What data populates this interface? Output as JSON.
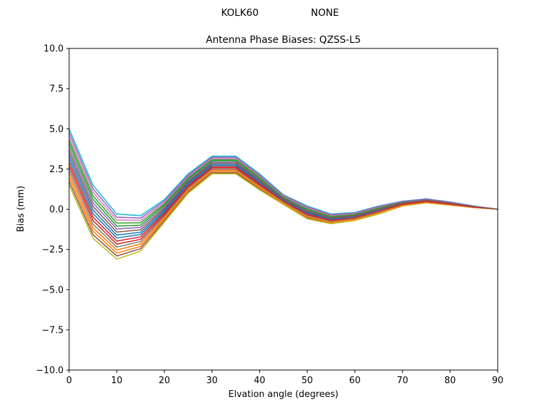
{
  "figure": {
    "suptitle_left": "KOLK60",
    "suptitle_right": "NONE"
  },
  "chart_data": {
    "type": "line",
    "suptitle": "KOLK60        NONE",
    "title": "Antenna Phase Biases: QZSS-L5",
    "xlabel": "Elvation angle (degrees)",
    "ylabel": "Bias (mm)",
    "xlim": [
      0,
      90
    ],
    "ylim": [
      -10.0,
      10.0
    ],
    "xticks": [
      0,
      10,
      20,
      30,
      40,
      50,
      60,
      70,
      80,
      90
    ],
    "xtick_labels": [
      "0",
      "10",
      "20",
      "30",
      "40",
      "50",
      "60",
      "70",
      "80",
      "90"
    ],
    "yticks": [
      -10.0,
      -7.5,
      -5.0,
      -2.5,
      0.0,
      2.5,
      5.0,
      7.5,
      10.0
    ],
    "ytick_labels": [
      "−10.0",
      "−7.5",
      "−5.0",
      "−2.5",
      "0.0",
      "2.5",
      "5.0",
      "7.5",
      "10.0"
    ],
    "grid": false,
    "legend": "none",
    "line_width": 1.6,
    "colors": [
      "#1f77b4",
      "#ff7f0e",
      "#2ca02c",
      "#d62728",
      "#9467bd",
      "#8c564b",
      "#e377c2",
      "#7f7f7f",
      "#bcbd22",
      "#17becf"
    ],
    "x": [
      0,
      5,
      10,
      15,
      20,
      25,
      30,
      35,
      40,
      45,
      50,
      55,
      60,
      65,
      70,
      75,
      80,
      85,
      90
    ],
    "series": [
      {
        "name": "s01",
        "values": [
          3.37,
          -0.04,
          -1.61,
          -1.43,
          -0.05,
          1.64,
          2.79,
          2.79,
          1.73,
          0.62,
          -0.17,
          -0.58,
          -0.43,
          -0.03,
          0.36,
          0.53,
          0.36,
          0.15,
          0.0
        ]
      },
      {
        "name": "s02",
        "values": [
          2.2,
          -1.14,
          -2.54,
          -2.16,
          -0.52,
          1.24,
          2.42,
          2.42,
          1.4,
          0.42,
          -0.44,
          -0.78,
          -0.6,
          -0.2,
          0.26,
          0.45,
          0.29,
          0.12,
          0.0
        ]
      },
      {
        "name": "s03",
        "values": [
          4.3,
          0.84,
          -0.86,
          -0.84,
          0.32,
          1.96,
          3.08,
          3.08,
          2.0,
          0.78,
          0.04,
          -0.42,
          -0.3,
          0.1,
          0.44,
          0.6,
          0.41,
          0.18,
          0.0
        ]
      },
      {
        "name": "s04",
        "values": [
          2.9,
          -0.48,
          -1.98,
          -1.72,
          -0.24,
          1.48,
          2.64,
          2.64,
          1.6,
          0.54,
          -0.28,
          -0.66,
          -0.5,
          -0.1,
          0.32,
          0.5,
          0.33,
          0.14,
          0.0
        ]
      },
      {
        "name": "s05",
        "values": [
          3.83,
          0.4,
          -1.23,
          -1.13,
          0.13,
          1.8,
          2.93,
          2.93,
          1.87,
          0.7,
          -0.07,
          -0.5,
          -0.37,
          0.03,
          0.4,
          0.57,
          0.38,
          0.17,
          0.0
        ]
      },
      {
        "name": "s06",
        "values": [
          1.73,
          -1.58,
          -2.91,
          -2.45,
          -0.71,
          1.08,
          2.27,
          2.27,
          1.27,
          0.34,
          -0.55,
          -0.86,
          -0.67,
          -0.27,
          0.22,
          0.42,
          0.26,
          0.11,
          0.0
        ]
      },
      {
        "name": "s07",
        "values": [
          4.53,
          1.06,
          -0.67,
          -0.69,
          0.41,
          2.04,
          3.15,
          3.15,
          2.07,
          0.82,
          0.09,
          -0.38,
          -0.27,
          0.13,
          0.46,
          0.62,
          0.42,
          0.19,
          0.0
        ]
      },
      {
        "name": "s08",
        "values": [
          2.43,
          -0.92,
          -2.35,
          -2.01,
          -0.43,
          1.32,
          2.49,
          2.49,
          1.47,
          0.46,
          -0.39,
          -0.74,
          -0.57,
          -0.17,
          0.28,
          0.47,
          0.3,
          0.13,
          0.0
        ]
      },
      {
        "name": "s09",
        "values": [
          1.5,
          -1.8,
          -3.1,
          -2.6,
          -0.8,
          1.0,
          2.2,
          2.2,
          1.2,
          0.3,
          -0.6,
          -0.9,
          -0.7,
          -0.3,
          0.2,
          0.4,
          0.25,
          0.1,
          0.0
        ]
      },
      {
        "name": "s10",
        "values": [
          5.0,
          1.5,
          -0.3,
          -0.4,
          0.6,
          2.2,
          3.3,
          3.3,
          2.2,
          0.9,
          0.2,
          -0.3,
          -0.2,
          0.2,
          0.5,
          0.65,
          0.45,
          0.2,
          0.0
        ]
      },
      {
        "name": "s11",
        "values": [
          3.13,
          -0.26,
          -1.79,
          -1.57,
          -0.15,
          1.56,
          2.71,
          2.71,
          1.67,
          0.58,
          -0.23,
          -0.62,
          -0.47,
          -0.07,
          0.34,
          0.52,
          0.34,
          0.15,
          0.0
        ]
      },
      {
        "name": "s12",
        "values": [
          1.97,
          -1.36,
          -2.73,
          -2.31,
          -0.61,
          1.16,
          2.35,
          2.35,
          1.33,
          0.38,
          -0.49,
          -0.82,
          -0.63,
          -0.23,
          0.24,
          0.43,
          0.28,
          0.11,
          0.0
        ]
      },
      {
        "name": "s13",
        "values": [
          4.07,
          0.62,
          -1.05,
          -0.99,
          0.23,
          1.88,
          3.01,
          3.01,
          1.93,
          0.74,
          -0.01,
          -0.46,
          -0.33,
          0.07,
          0.42,
          0.58,
          0.4,
          0.17,
          0.0
        ]
      },
      {
        "name": "s14",
        "values": [
          2.67,
          -0.7,
          -2.17,
          -1.87,
          -0.33,
          1.4,
          2.57,
          2.57,
          1.53,
          0.5,
          -0.33,
          -0.7,
          -0.53,
          -0.13,
          0.3,
          0.48,
          0.32,
          0.13,
          0.0
        ]
      },
      {
        "name": "s15",
        "values": [
          4.77,
          1.28,
          -0.49,
          -0.55,
          0.51,
          2.12,
          3.23,
          3.23,
          2.13,
          0.86,
          0.15,
          -0.34,
          -0.23,
          0.17,
          0.48,
          0.63,
          0.44,
          0.19,
          0.0
        ]
      },
      {
        "name": "s16",
        "values": [
          3.6,
          0.18,
          -1.42,
          -1.28,
          0.04,
          1.72,
          2.86,
          2.86,
          1.8,
          0.66,
          -0.12,
          -0.54,
          -0.4,
          0.0,
          0.38,
          0.55,
          0.37,
          0.16,
          0.0
        ]
      }
    ]
  }
}
